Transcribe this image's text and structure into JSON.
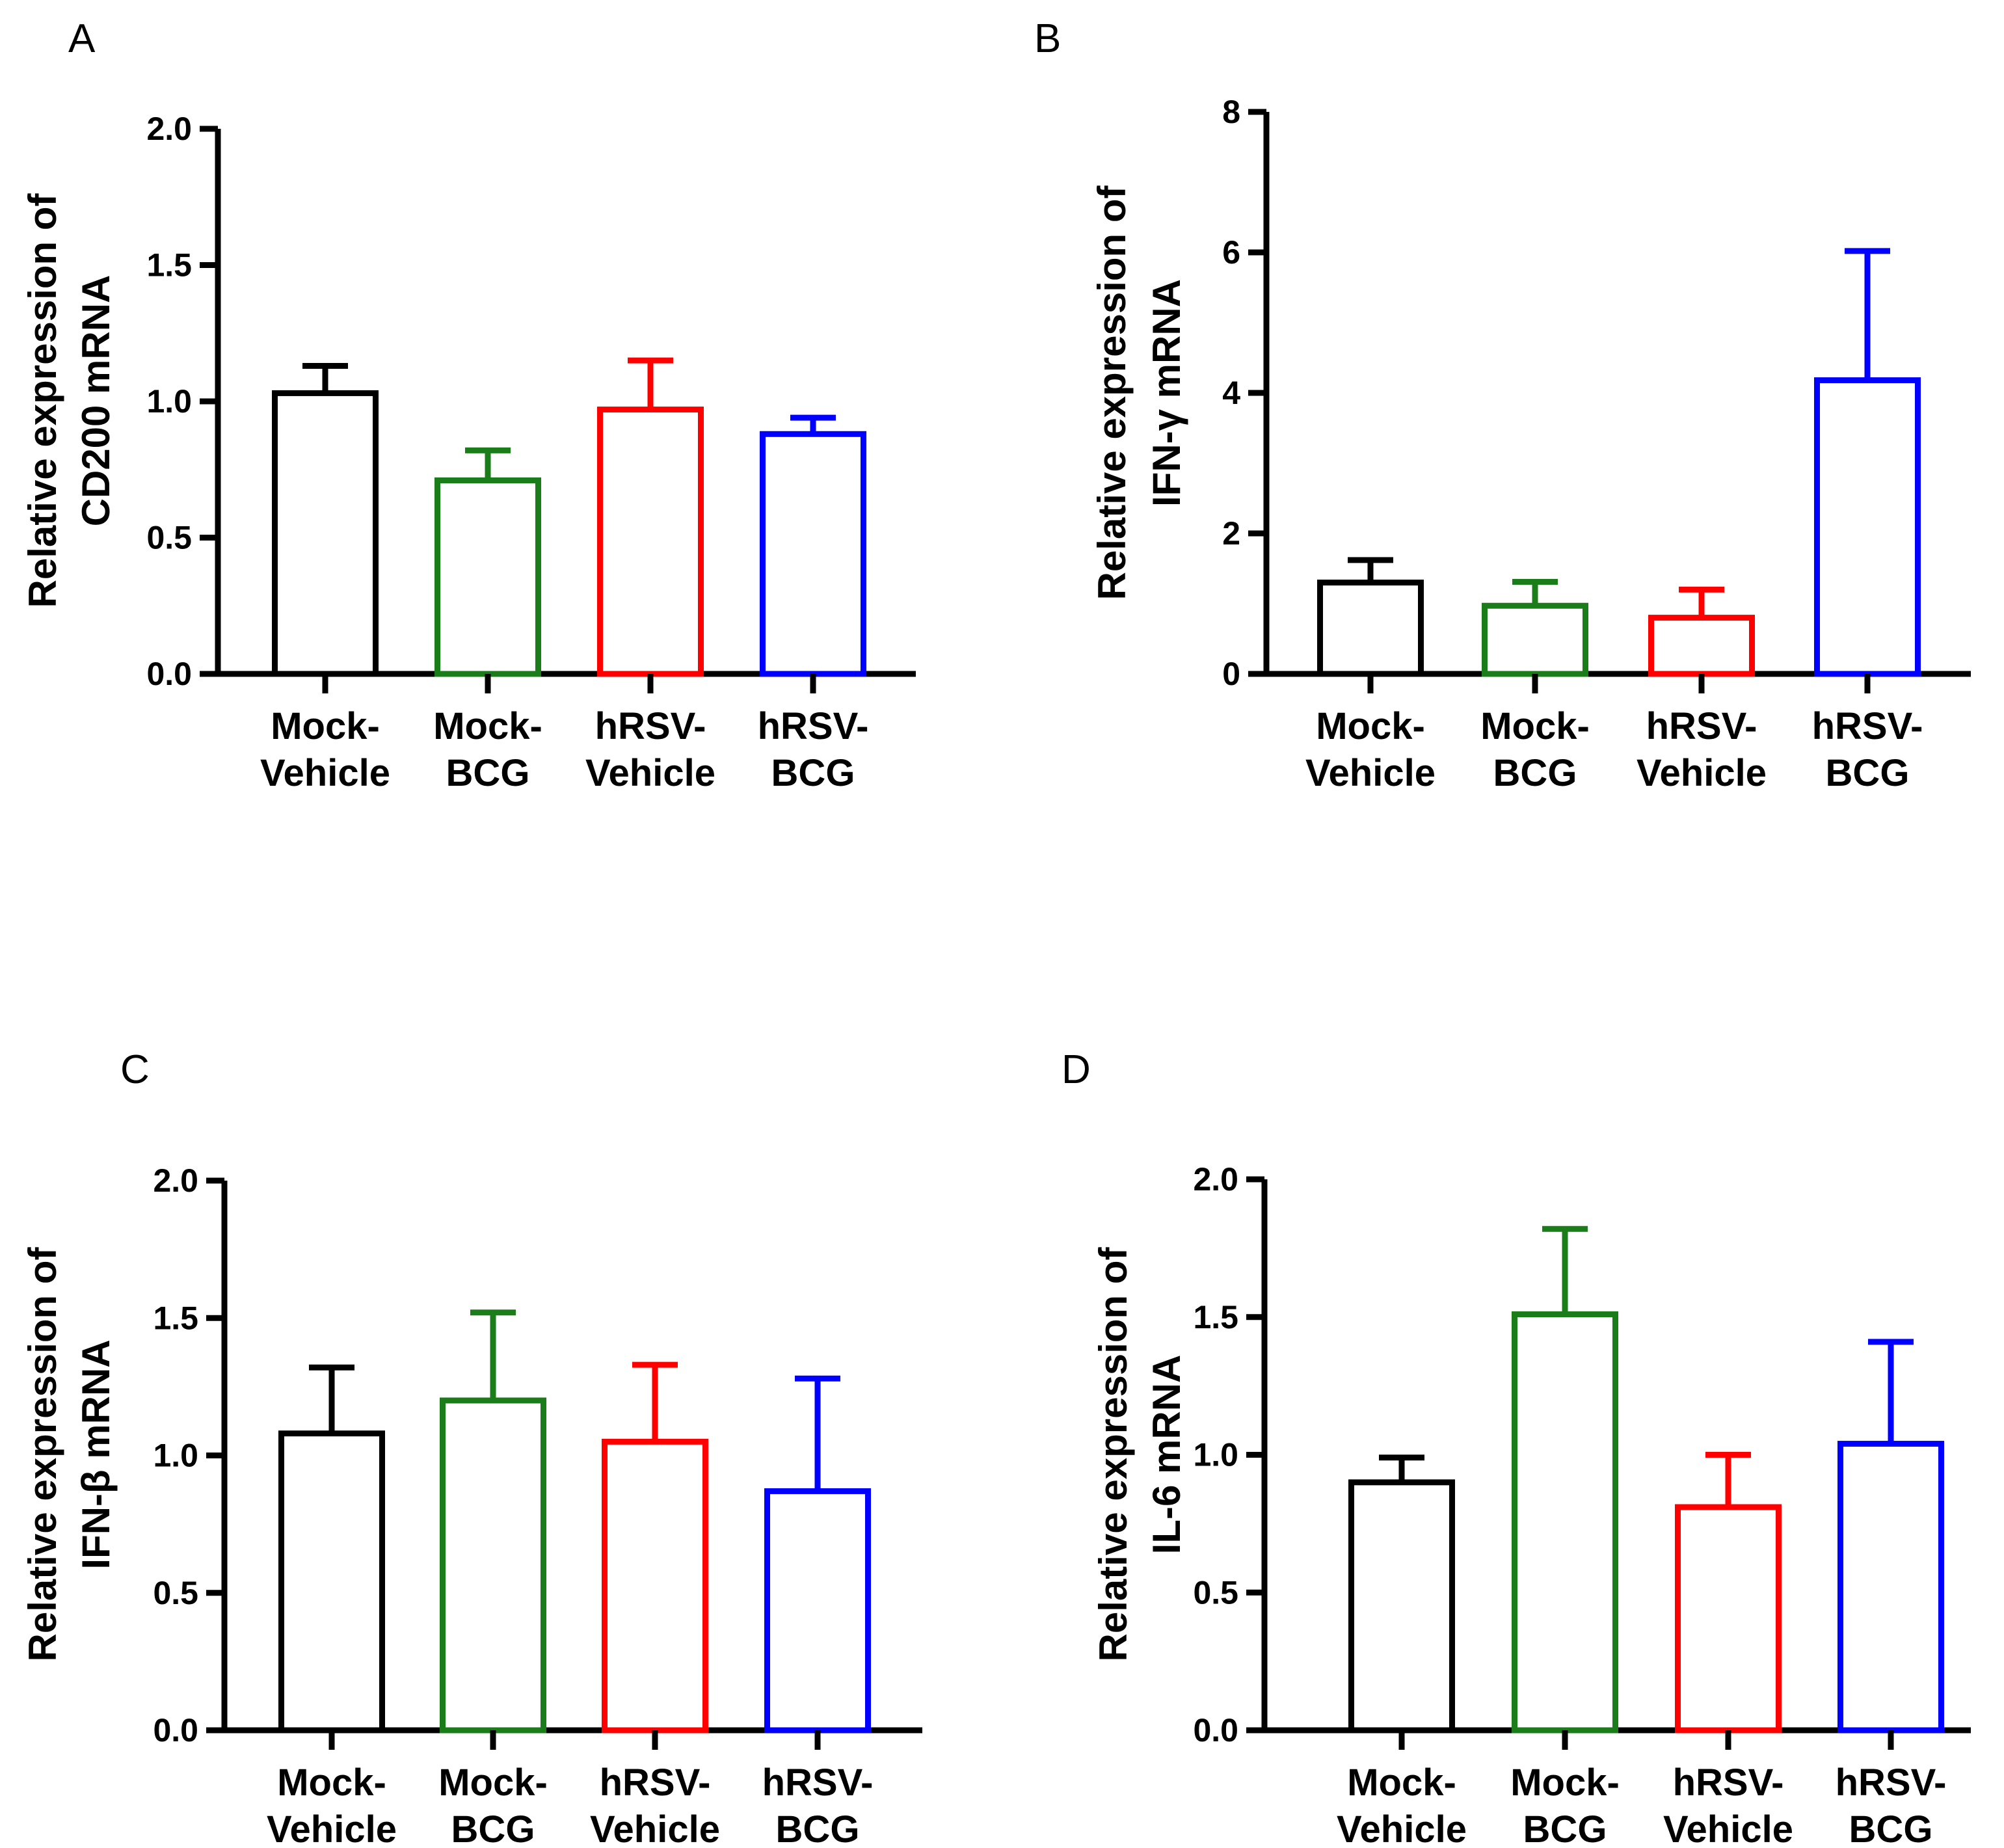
{
  "chart_data": [
    {
      "panel": "A",
      "type": "bar",
      "categories": [
        [
          "Mock-",
          "Vehicle"
        ],
        [
          "Mock-",
          "BCG"
        ],
        [
          "hRSV-",
          "Vehicle"
        ],
        [
          "hRSV-",
          "BCG"
        ]
      ],
      "values": [
        1.03,
        0.71,
        0.97,
        0.88
      ],
      "errors": [
        0.1,
        0.11,
        0.18,
        0.06
      ],
      "colors": [
        "#000000",
        "#1a7d1a",
        "#ff0000",
        "#0000ff"
      ],
      "ylabel": [
        "Relative expression of",
        "CD200 mRNA"
      ],
      "ylim": [
        0,
        2.0
      ],
      "yticks": [
        "0.0",
        "0.5",
        "1.0",
        "1.5",
        "2.0"
      ]
    },
    {
      "panel": "B",
      "type": "bar",
      "categories": [
        [
          "Mock-",
          "Vehicle"
        ],
        [
          "Mock-",
          "BCG"
        ],
        [
          "hRSV-",
          "Vehicle"
        ],
        [
          "hRSV-",
          "BCG"
        ]
      ],
      "values": [
        1.3,
        0.97,
        0.8,
        4.18
      ],
      "errors": [
        0.32,
        0.34,
        0.4,
        1.84
      ],
      "colors": [
        "#000000",
        "#1a7d1a",
        "#ff0000",
        "#0000ff"
      ],
      "ylabel": [
        "Relative expression of",
        "IFN-γ mRNA"
      ],
      "ylim": [
        0,
        8
      ],
      "yticks": [
        "0",
        "2",
        "4",
        "6",
        "8"
      ]
    },
    {
      "panel": "C",
      "type": "bar",
      "categories": [
        [
          "Mock-",
          "Vehicle"
        ],
        [
          "Mock-",
          "BCG"
        ],
        [
          "hRSV-",
          "Vehicle"
        ],
        [
          "hRSV-",
          "BCG"
        ]
      ],
      "values": [
        1.08,
        1.2,
        1.05,
        0.87
      ],
      "errors": [
        0.24,
        0.32,
        0.28,
        0.41
      ],
      "colors": [
        "#000000",
        "#1a7d1a",
        "#ff0000",
        "#0000ff"
      ],
      "ylabel": [
        "Relative expression of",
        "IFN-β mRNA"
      ],
      "ylim": [
        0,
        2.0
      ],
      "yticks": [
        "0.0",
        "0.5",
        "1.0",
        "1.5",
        "2.0"
      ]
    },
    {
      "panel": "D",
      "type": "bar",
      "categories": [
        [
          "Mock-",
          "Vehicle"
        ],
        [
          "Mock-",
          "BCG"
        ],
        [
          "hRSV-",
          "Vehicle"
        ],
        [
          "hRSV-",
          "BCG"
        ]
      ],
      "values": [
        0.9,
        1.51,
        0.81,
        1.04
      ],
      "errors": [
        0.09,
        0.31,
        0.19,
        0.37
      ],
      "colors": [
        "#000000",
        "#1a7d1a",
        "#ff0000",
        "#0000ff"
      ],
      "ylabel": [
        "Relative expression of",
        "IL-6 mRNA"
      ],
      "ylim": [
        0,
        2.0
      ],
      "yticks": [
        "0.0",
        "0.5",
        "1.0",
        "1.5",
        "2.0"
      ]
    }
  ]
}
